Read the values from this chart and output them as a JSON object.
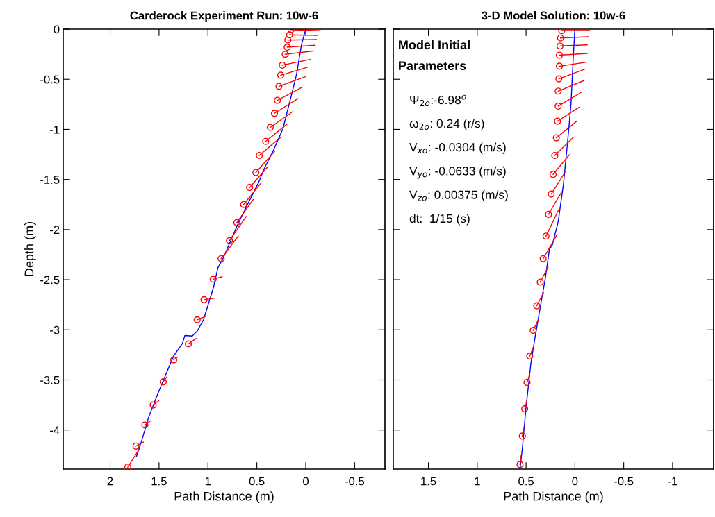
{
  "chart_data": [
    {
      "type": "line",
      "title": "Carderock Experiment Run: 10w-6",
      "xlabel": "Path Distance (m)",
      "ylabel": "Depth (m)",
      "xlim": [
        2.48,
        -0.81
      ],
      "xticks": [
        2,
        1.5,
        1,
        0.5,
        0,
        -0.5
      ],
      "ylim": [
        -4.39,
        0
      ],
      "yticks": [
        0,
        -0.5,
        -1,
        -1.5,
        -2,
        -2.5,
        -3,
        -3.5,
        -4
      ],
      "series": [
        {
          "color": "#0000ff",
          "marker": "none",
          "x": [
            0,
            0.043,
            0.094,
            0.157,
            0.234,
            0.335,
            0.424,
            0.487,
            0.589,
            0.69,
            0.766,
            0.843,
            0.898,
            0.944,
            0.995,
            1.046,
            1.109,
            1.16,
            1.236,
            1.261,
            1.35,
            1.452,
            1.515,
            1.604,
            1.68,
            1.731
          ],
          "values": [
            0,
            -0.153,
            -0.45,
            -0.7,
            -0.995,
            -1.218,
            -1.39,
            -1.54,
            -1.737,
            -1.936,
            -2.109,
            -2.282,
            -2.381,
            -2.579,
            -2.74,
            -2.9,
            -3.012,
            -3.062,
            -3.057,
            -3.136,
            -3.26,
            -3.495,
            -3.644,
            -3.866,
            -4.114,
            -4.262
          ]
        },
        {
          "type": "scatter",
          "color": "#ff0000",
          "marker": "circle",
          "x": [
            0.15,
            0.165,
            0.183,
            0.19,
            0.21,
            0.24,
            0.256,
            0.274,
            0.29,
            0.32,
            0.363,
            0.41,
            0.475,
            0.51,
            0.574,
            0.635,
            0.705,
            0.78,
            0.865,
            0.947,
            1.04,
            1.11,
            1.2,
            1.35,
            1.457,
            1.56,
            1.645,
            1.736,
            1.82
          ],
          "values": [
            -0.005,
            -0.057,
            -0.109,
            -0.18,
            -0.25,
            -0.36,
            -0.46,
            -0.57,
            -0.71,
            -0.84,
            -0.98,
            -1.12,
            -1.26,
            -1.43,
            -1.58,
            -1.75,
            -1.93,
            -2.11,
            -2.29,
            -2.495,
            -2.7,
            -2.9,
            -3.14,
            -3.3,
            -3.52,
            -3.75,
            -3.95,
            -4.16,
            -4.37
          ]
        },
        {
          "color": "#ff0000",
          "marker": "none",
          "x": [
            0.15,
            -0.147,
            null,
            0.165,
            -0.122,
            null,
            0.183,
            -0.109,
            null,
            0.19,
            -0.096,
            null,
            0.21,
            -0.076,
            null,
            0.24,
            -0.046,
            null,
            0.256,
            -0.013,
            null,
            0.274,
            0.005,
            null,
            0.29,
            0.043,
            null,
            0.32,
            0.081,
            null,
            0.363,
            0.132,
            null,
            0.41,
            0.19,
            null,
            0.475,
            0.25,
            null,
            0.51,
            0.317,
            null,
            0.574,
            0.39,
            null,
            0.635,
            0.462,
            null,
            0.705,
            0.538,
            null,
            0.78,
            0.61,
            null,
            0.865,
            0.69,
            null,
            0.947,
            0.855,
            null,
            1.04,
            0.939,
            null,
            1.11,
            1.02,
            null,
            1.2,
            1.122,
            null,
            1.35,
            1.312,
            null,
            1.457,
            1.421,
            null,
            1.56,
            1.503,
            null,
            1.645,
            1.591,
            null,
            1.736,
            1.66,
            null,
            1.82,
            1.701
          ],
          "values": [
            -0.005,
            -0.015,
            null,
            -0.057,
            -0.062,
            null,
            -0.109,
            -0.104,
            null,
            -0.18,
            -0.161,
            null,
            -0.25,
            -0.218,
            null,
            -0.36,
            -0.302,
            null,
            -0.46,
            -0.381,
            null,
            -0.57,
            -0.475,
            null,
            -0.71,
            -0.582,
            null,
            -0.84,
            -0.693,
            null,
            -0.98,
            -0.822,
            null,
            -1.12,
            -0.946,
            null,
            -1.26,
            -1.074,
            null,
            -1.43,
            -1.218,
            null,
            -1.58,
            -1.374,
            null,
            -1.75,
            -1.54,
            null,
            -1.93,
            -1.7,
            null,
            -2.11,
            -1.87,
            null,
            -2.29,
            -2.064,
            null,
            -2.495,
            -2.47,
            null,
            -2.7,
            -2.686,
            null,
            -2.9,
            -2.864,
            null,
            -3.14,
            -3.087,
            null,
            -3.3,
            -3.272,
            null,
            -3.52,
            -3.47,
            null,
            -3.75,
            -3.708,
            null,
            -3.95,
            -3.911,
            null,
            -4.16,
            -4.121,
            null,
            -4.37,
            -4.188
          ]
        }
      ]
    },
    {
      "type": "line",
      "title": "3-D Model Solution: 10w-6",
      "xlabel": "Path Distance (m)",
      "tick_labels": "x",
      "xlim": [
        1.86,
        -1.42
      ],
      "xticks": [
        1.5,
        1,
        0.5,
        0,
        -0.5,
        -1
      ],
      "ylim": [
        -4.39,
        0
      ],
      "yticks": [
        0,
        -0.5,
        -1,
        -1.5,
        -2,
        -2.5,
        -3,
        -3.5,
        -4
      ],
      "annotations": [
        "Model Initial\nParameters",
        "Ψ$_{2o}$:-6.98$^{o}$",
        "ω$_{2o}$: 0.24 (r/s)",
        "V$_{xo}$: -0.0304 (m/s)",
        "V$_{yo}$: -0.0633 (m/s)",
        "V$_{zo}$: 0.00375 (m/s)",
        "dt:  1/15 (s)"
      ],
      "series": [
        {
          "color": "#0000ff",
          "marker": "none",
          "x": [
            0,
            0.017,
            0.04,
            0.076,
            0.118,
            0.171,
            0.23,
            0.261,
            0.301,
            0.355,
            0.408,
            0.45,
            0.502,
            0.538,
            0.562
          ],
          "values": [
            0,
            -0.284,
            -0.745,
            -1.137,
            -1.553,
            -1.92,
            -2.15,
            -2.198,
            -2.475,
            -2.775,
            -3.075,
            -3.329,
            -3.79,
            -4.182,
            -4.39
          ]
        },
        {
          "type": "scatter",
          "color": "#ff0000",
          "marker": "circle",
          "x": [
            0.135,
            0.147,
            0.152,
            0.159,
            0.159,
            0.164,
            0.171,
            0.171,
            0.178,
            0.19,
            0.206,
            0.223,
            0.242,
            0.27,
            0.296,
            0.325,
            0.355,
            0.391,
            0.427,
            0.462,
            0.49,
            0.514,
            0.538,
            0.562
          ],
          "values": [
            -0.014,
            -0.088,
            -0.168,
            -0.26,
            -0.37,
            -0.496,
            -0.618,
            -0.768,
            -0.918,
            -1.084,
            -1.26,
            -1.449,
            -1.645,
            -1.848,
            -2.065,
            -2.29,
            -2.524,
            -2.76,
            -3.006,
            -3.262,
            -3.525,
            -3.788,
            -4.06,
            -4.344
          ]
        },
        {
          "color": "#ff0000",
          "marker": "none",
          "x": [
            0.135,
            -0.149,
            null,
            0.147,
            -0.137,
            null,
            0.152,
            -0.126,
            null,
            0.159,
            -0.126,
            null,
            0.159,
            -0.118,
            null,
            0.164,
            -0.102,
            null,
            0.171,
            -0.09,
            null,
            0.171,
            -0.066,
            null,
            0.178,
            -0.043,
            null,
            0.19,
            -0.019,
            null,
            0.206,
            0.017,
            null,
            0.223,
            0.057,
            null,
            0.242,
            0.1,
            null,
            0.27,
            0.135,
            null,
            0.296,
            0.171,
            null,
            0.325,
            0.182,
            null,
            0.355,
            0.275,
            null,
            0.391,
            0.321,
            null,
            0.427,
            0.37,
            null,
            0.462,
            0.42,
            null,
            0.49,
            0.46,
            null,
            0.514,
            0.49,
            null,
            0.538,
            0.52,
            null,
            0.562,
            0.55
          ],
          "values": [
            -0.014,
            -0.014,
            null,
            -0.088,
            -0.076,
            null,
            -0.168,
            -0.157,
            null,
            -0.26,
            -0.242,
            null,
            -0.37,
            -0.33,
            null,
            -0.496,
            -0.399,
            null,
            -0.618,
            -0.514,
            null,
            -0.768,
            -0.63,
            null,
            -0.918,
            -0.78,
            null,
            -1.084,
            -0.918,
            null,
            -1.26,
            -1.08,
            null,
            -1.449,
            -1.253,
            null,
            -1.645,
            -1.426,
            null,
            -1.848,
            -1.622,
            null,
            -2.065,
            -1.811,
            null,
            -2.29,
            -2.048,
            null,
            -2.524,
            -2.374,
            null,
            -2.76,
            -2.63,
            null,
            -3.006,
            -2.89,
            null,
            -3.262,
            -3.16,
            null,
            -3.525,
            -3.43,
            null,
            -3.788,
            -3.7,
            null,
            -4.06,
            -3.97,
            null,
            -4.344,
            -4.25
          ]
        }
      ]
    }
  ]
}
